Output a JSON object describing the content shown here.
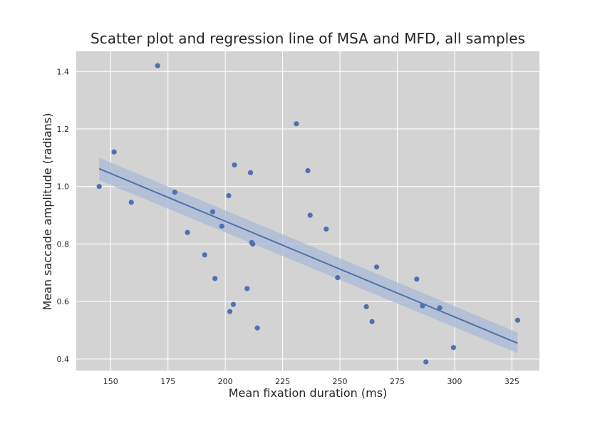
{
  "chart_data": {
    "type": "scatter",
    "title": "Scatter plot and regression line of MSA and MFD, all samples",
    "xlabel": "Mean fixation duration (ms)",
    "ylabel": "Mean saccade amplitude (radians)",
    "xlim": [
      135,
      337
    ],
    "ylim": [
      0.36,
      1.47
    ],
    "xticks": [
      150,
      175,
      200,
      225,
      250,
      275,
      300,
      325
    ],
    "yticks": [
      0.4,
      0.6,
      0.8,
      1.0,
      1.2,
      1.4
    ],
    "ytick_labels": [
      "0.4",
      "0.6",
      "0.8",
      "1.0",
      "1.2",
      "1.4"
    ],
    "grid": true,
    "background_color": "#d3d3d3",
    "point_color": "#4c72b0",
    "line_color": "#4c72b0",
    "band_color": "#a9b9d5",
    "series": [
      {
        "x": [
          145,
          151.5,
          159,
          170.5,
          178,
          183.5,
          191,
          194.5,
          195.5,
          198.5,
          201.5,
          202,
          203.5,
          204,
          209.5,
          211,
          211.5,
          212,
          214,
          231,
          236,
          237,
          244,
          249,
          261.5,
          264,
          266,
          283.5,
          286,
          287.5,
          293.5,
          299.5,
          327.5
        ],
        "y": [
          1.0,
          1.12,
          0.945,
          1.42,
          0.98,
          0.84,
          0.762,
          0.912,
          0.68,
          0.862,
          0.968,
          0.565,
          0.59,
          1.075,
          0.645,
          1.048,
          0.805,
          0.8,
          0.508,
          1.218,
          1.055,
          0.9,
          0.852,
          0.683,
          0.582,
          0.53,
          0.72,
          0.678,
          0.585,
          0.39,
          0.578,
          0.44,
          0.535
        ]
      }
    ],
    "regression": {
      "x": [
        145,
        327.5
      ],
      "y": [
        1.062,
        0.455
      ],
      "ci_upper": [
        1.1,
        0.492
      ],
      "ci_lower": [
        1.022,
        0.42
      ]
    }
  }
}
